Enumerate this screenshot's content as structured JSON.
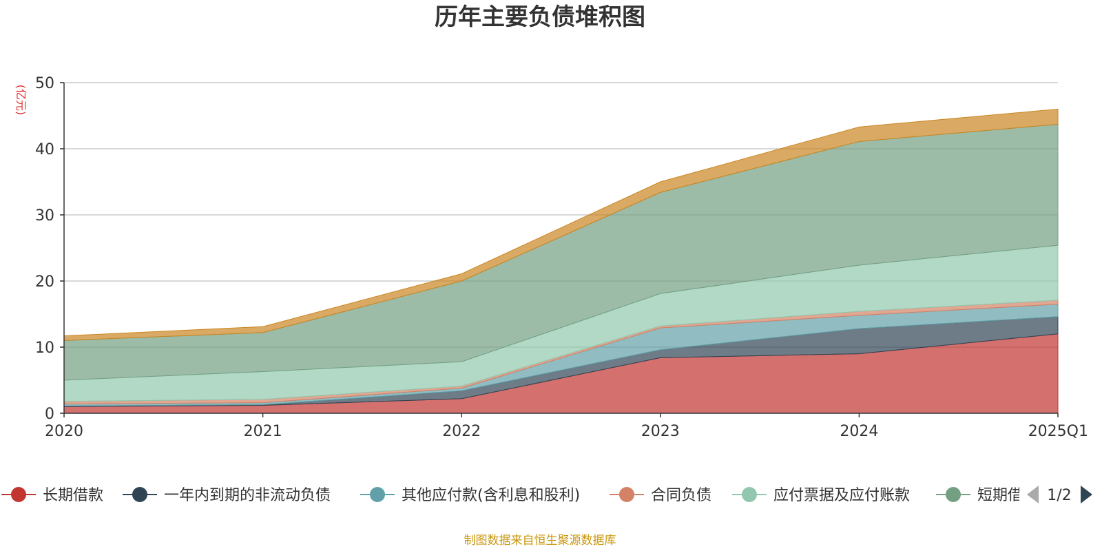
{
  "chart_data": {
    "type": "area",
    "stacked": true,
    "title": "历年主要负债堆积图",
    "ylabel": "(亿元)",
    "x": [
      "2020",
      "2021",
      "2022",
      "2023",
      "2024",
      "2025Q1"
    ],
    "ylim": [
      0,
      50
    ],
    "yticks": [
      "0",
      "10",
      "20",
      "30",
      "40",
      "50"
    ],
    "grid": true,
    "legend_position": "bottom",
    "series": [
      {
        "name": "长期借款",
        "color": "#c23531",
        "values": [
          1.0,
          1.2,
          2.2,
          8.4,
          9.0,
          12.0
        ]
      },
      {
        "name": "一年内到期的非流动负债",
        "color": "#2f4554",
        "values": [
          0.1,
          0.1,
          1.2,
          1.2,
          3.8,
          2.6
        ]
      },
      {
        "name": "其他应付款(含利息和股利)",
        "color": "#61a0a8",
        "values": [
          0.3,
          0.3,
          0.4,
          3.3,
          2.0,
          1.9
        ]
      },
      {
        "name": "合同负债",
        "color": "#d48265",
        "values": [
          0.4,
          0.5,
          0.3,
          0.3,
          0.6,
          0.6
        ]
      },
      {
        "name": "应付票据及应付账款",
        "color": "#91c7ae",
        "values": [
          3.2,
          4.2,
          3.7,
          4.9,
          7.0,
          8.3
        ]
      },
      {
        "name": "短期借款",
        "color": "#749f83",
        "values": [
          6.0,
          5.9,
          12.2,
          15.3,
          18.7,
          18.3
        ]
      },
      {
        "name": "",
        "color": "#ca8622",
        "values": [
          0.7,
          0.9,
          1.1,
          1.6,
          2.2,
          2.3
        ]
      }
    ]
  },
  "legend": {
    "items": [
      "长期借款",
      "一年内到期的非流动负债",
      "其他应付款(含利息和股利)",
      "合同负债",
      "应付票据及应付账款",
      "短期借"
    ],
    "page": "1/2"
  },
  "source": "制图数据来自恒生聚源数据库"
}
